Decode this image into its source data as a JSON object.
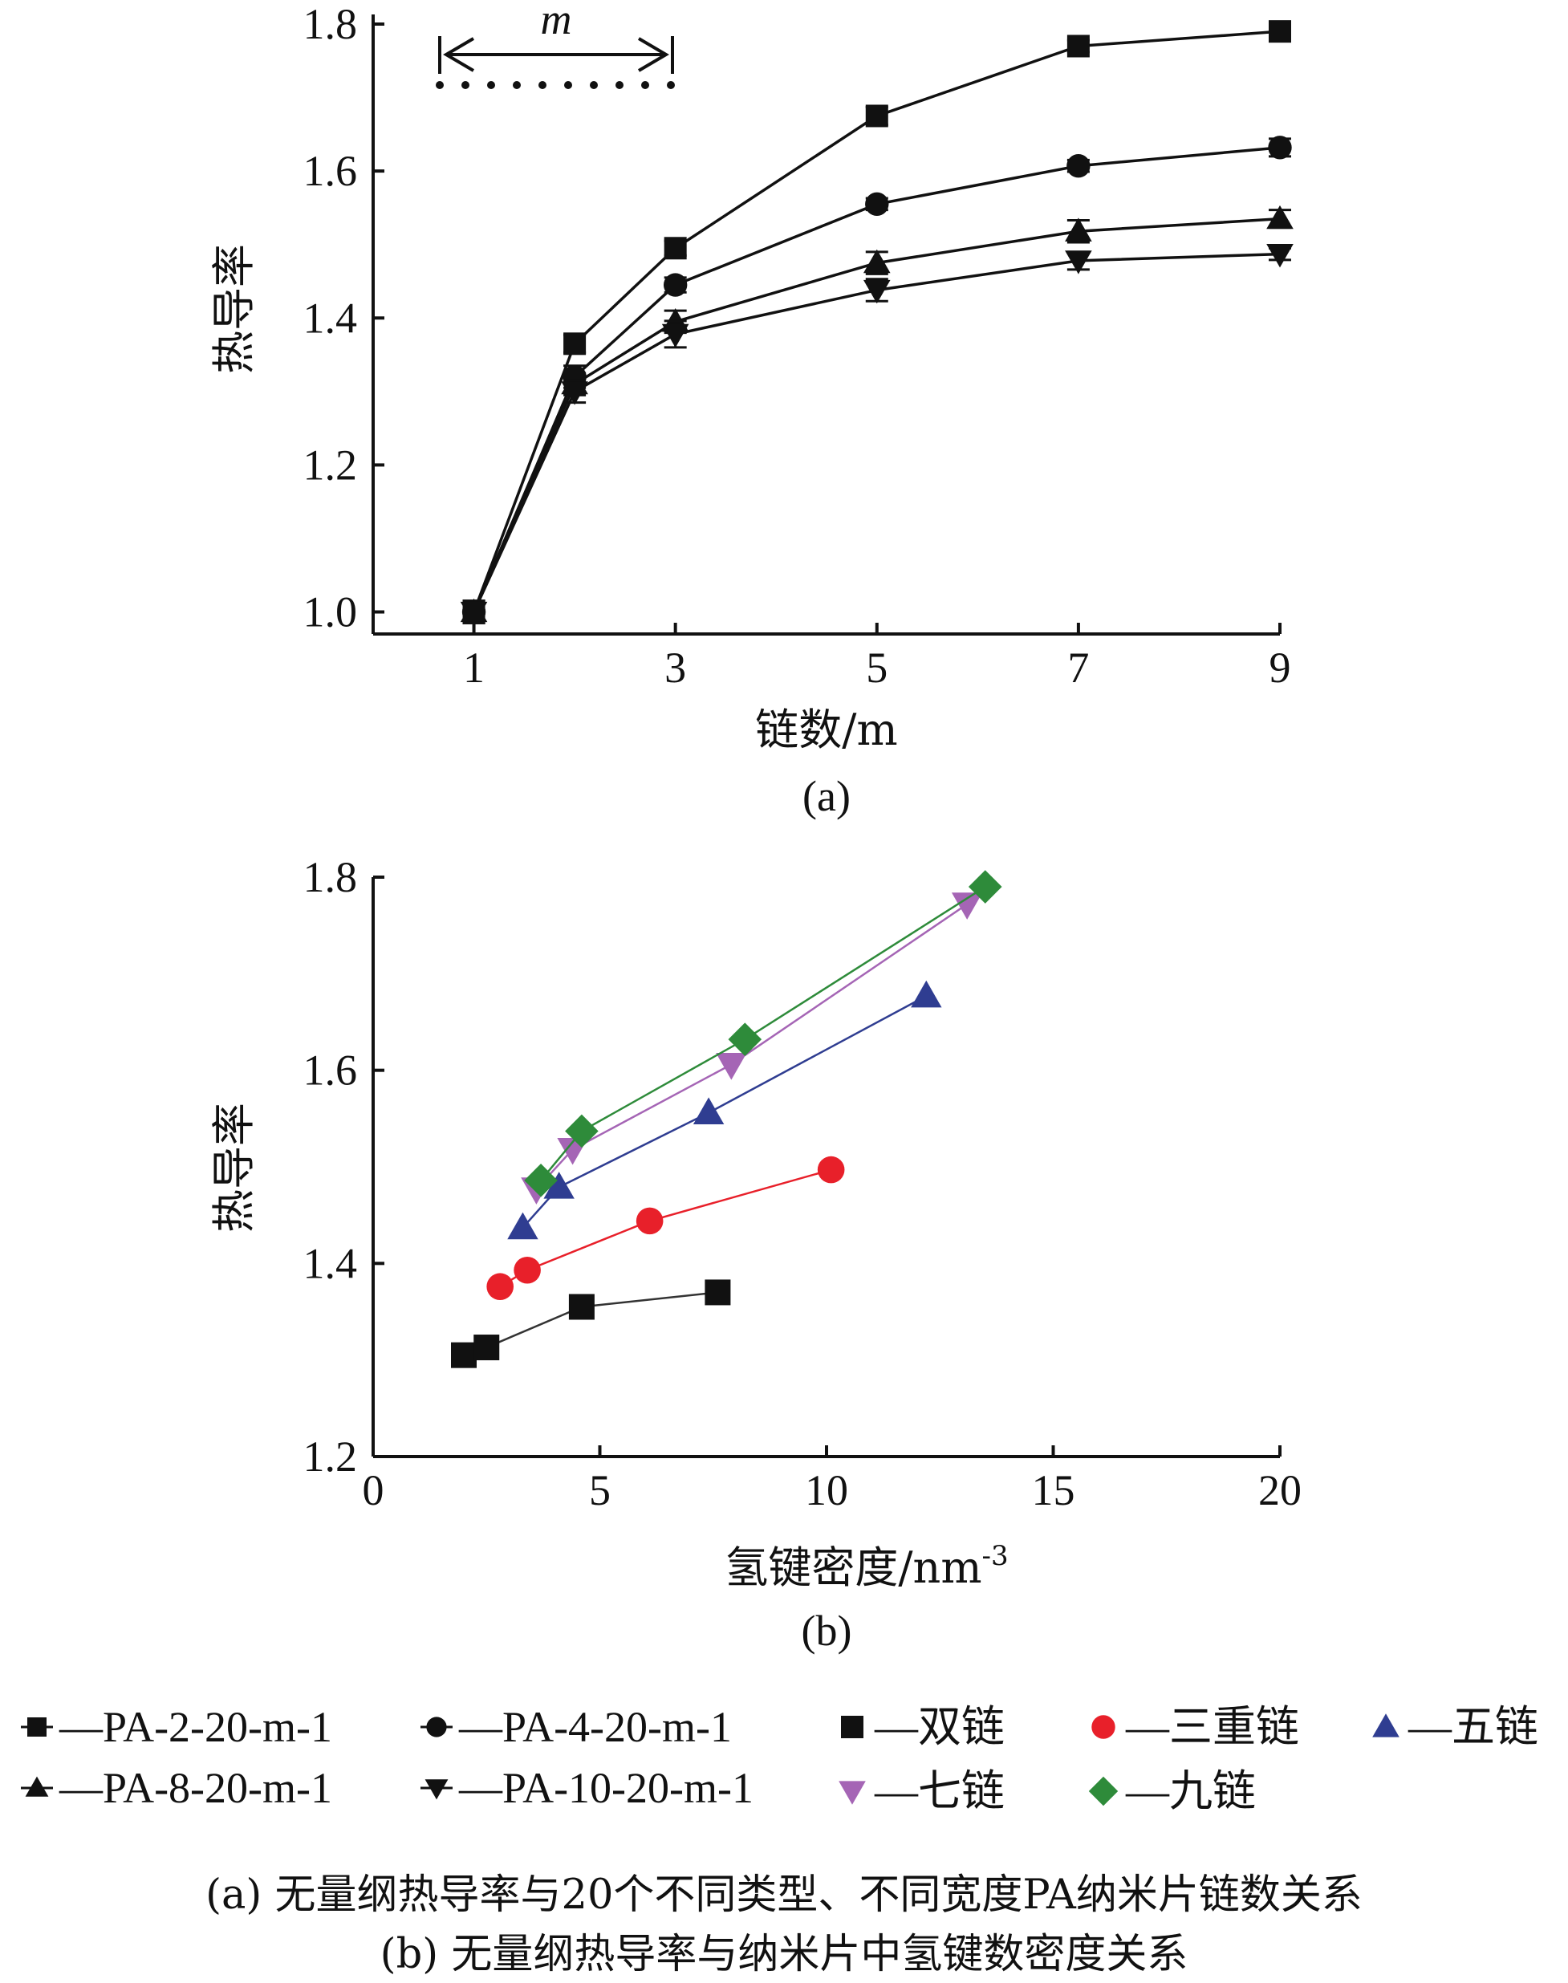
{
  "chart_data": [
    {
      "type": "line",
      "panel_label": "(a)",
      "xlabel": "链数/m",
      "ylabel": "热导率",
      "x_ticks": [
        "1",
        "3",
        "5",
        "7",
        "9"
      ],
      "y_ticks": [
        "1.0",
        "1.2",
        "1.4",
        "1.6",
        "1.8"
      ],
      "xlim": [
        0,
        9
      ],
      "ylim": [
        0.97,
        1.8
      ],
      "inset_label": "m",
      "x": [
        1,
        2,
        3,
        5,
        7,
        9
      ],
      "series": [
        {
          "name": "PA-2-20-m-1",
          "marker": "square",
          "values": [
            1.0,
            1.365,
            1.495,
            1.675,
            1.77,
            1.79
          ],
          "errors": [
            0.015,
            0.012,
            0.01,
            0.012,
            0.008,
            0.008
          ]
        },
        {
          "name": "PA-4-20-m-1",
          "marker": "circle",
          "values": [
            1.0,
            1.32,
            1.445,
            1.555,
            1.607,
            1.632
          ],
          "errors": [
            0.015,
            0.015,
            0.01,
            0.008,
            0.008,
            0.012
          ]
        },
        {
          "name": "PA-8-20-m-1",
          "marker": "triangle-up",
          "values": [
            1.0,
            1.31,
            1.395,
            1.475,
            1.518,
            1.535
          ],
          "errors": [
            0.015,
            0.015,
            0.015,
            0.015,
            0.015,
            0.012
          ]
        },
        {
          "name": "PA-10-20-m-1",
          "marker": "triangle-down",
          "values": [
            1.0,
            1.3,
            1.378,
            1.438,
            1.478,
            1.487
          ],
          "errors": [
            0.015,
            0.015,
            0.018,
            0.015,
            0.012,
            0.008
          ]
        }
      ]
    },
    {
      "type": "line",
      "panel_label": "(b)",
      "xlabel": "氢键密度/nm",
      "xlabel_sup": "-3",
      "ylabel": "热导率",
      "x_ticks": [
        "0",
        "5",
        "10",
        "15",
        "20"
      ],
      "y_ticks": [
        "1.2",
        "1.4",
        "1.6",
        "1.8"
      ],
      "xlim": [
        0,
        20
      ],
      "ylim": [
        1.2,
        1.8
      ],
      "series": [
        {
          "name": "双链",
          "marker": "square",
          "color": "#111111",
          "line_color": "#333333",
          "points": [
            [
              2.0,
              1.305
            ],
            [
              2.5,
              1.313
            ],
            [
              4.6,
              1.355
            ],
            [
              7.6,
              1.37
            ]
          ]
        },
        {
          "name": "三重链",
          "marker": "circle",
          "color": "#e8202a",
          "line_color": "#e8202a",
          "points": [
            [
              2.8,
              1.376
            ],
            [
              3.4,
              1.393
            ],
            [
              6.1,
              1.444
            ],
            [
              10.1,
              1.497
            ]
          ]
        },
        {
          "name": "五链",
          "marker": "triangle-up",
          "color": "#2f3d91",
          "line_color": "#2f3d91",
          "points": [
            [
              3.3,
              1.437
            ],
            [
              4.1,
              1.479
            ],
            [
              7.4,
              1.556
            ],
            [
              12.2,
              1.677
            ]
          ]
        },
        {
          "name": "七链",
          "marker": "triangle-down",
          "color": "#a565b5",
          "line_color": "#a565b5",
          "points": [
            [
              3.6,
              1.477
            ],
            [
              4.4,
              1.518
            ],
            [
              7.9,
              1.606
            ],
            [
              13.1,
              1.772
            ]
          ]
        },
        {
          "name": "九链",
          "marker": "diamond",
          "color": "#2e8b3a",
          "line_color": "#2e8b3a",
          "points": [
            [
              3.7,
              1.486
            ],
            [
              4.6,
              1.537
            ],
            [
              8.2,
              1.632
            ],
            [
              13.5,
              1.79
            ]
          ]
        }
      ]
    }
  ],
  "legend_a": [
    "PA-2-20-m-1",
    "PA-4-20-m-1",
    "PA-8-20-m-1",
    "PA-10-20-m-1"
  ],
  "legend_b": [
    "双链",
    "三重链",
    "五链",
    "七链",
    "九链"
  ],
  "legend_dash": "—",
  "captions": {
    "a": "(a) 无量纲热导率与20个不同类型、不同宽度PA纳米片链数关系",
    "b": "(b) 无量纲热导率与纳米片中氢键数密度关系"
  }
}
